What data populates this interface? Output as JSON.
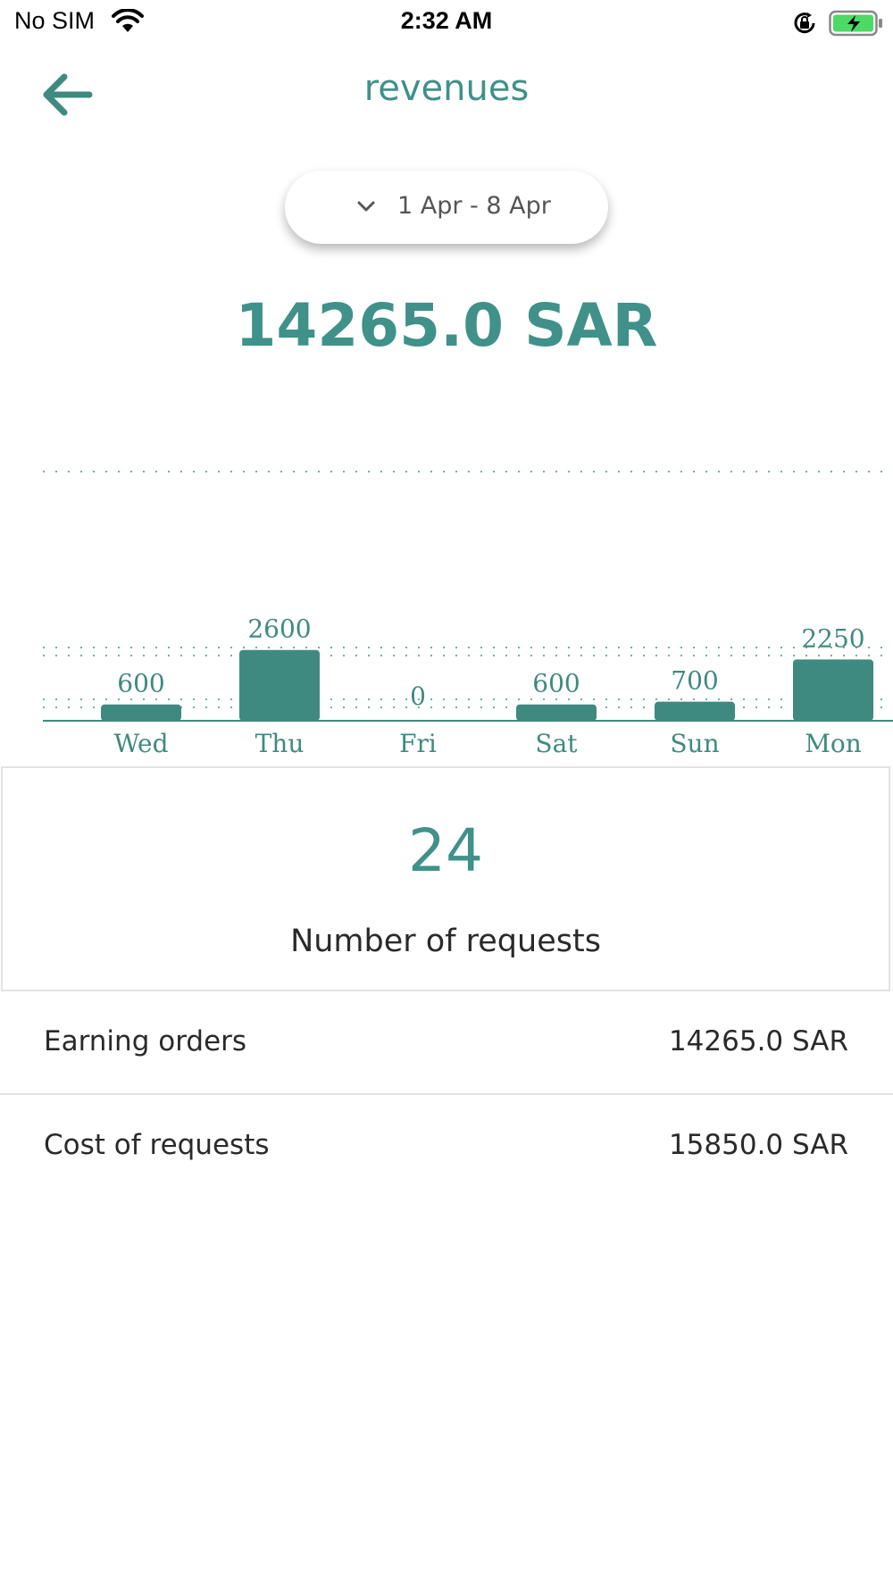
{
  "status_bar": {
    "carrier": "No SIM",
    "time": "2:32 AM",
    "icons": [
      "wifi-icon",
      "orientation-lock-icon",
      "battery-charging-icon"
    ]
  },
  "nav": {
    "title": "revenues",
    "back_icon": "arrow-left-icon"
  },
  "date_range": {
    "label": "1 Apr - 8 Apr",
    "icon": "chevron-down-icon"
  },
  "total": "14265.0 SAR",
  "chart_data": {
    "type": "bar",
    "categories": [
      "Wed",
      "Thu",
      "Fri",
      "Sat",
      "Sun",
      "Mon"
    ],
    "values": [
      600,
      2600,
      0,
      600,
      700,
      2250
    ],
    "value_labels": [
      "600",
      "2600",
      "0",
      "600",
      "700",
      "2250"
    ],
    "ylim": [
      0,
      10000
    ],
    "grid": true,
    "bar_color": "#3f8a80",
    "label_color": "#3f8a80"
  },
  "requests": {
    "count": "24",
    "label": "Number of requests"
  },
  "summary": {
    "earning_label": "Earning orders",
    "earning_value": "14265.0 SAR",
    "cost_label": "Cost of requests",
    "cost_value": "15850.0 SAR"
  },
  "colors": {
    "accent": "#3f9189",
    "text": "#2a2a2a",
    "divider": "#e3e3e3"
  }
}
